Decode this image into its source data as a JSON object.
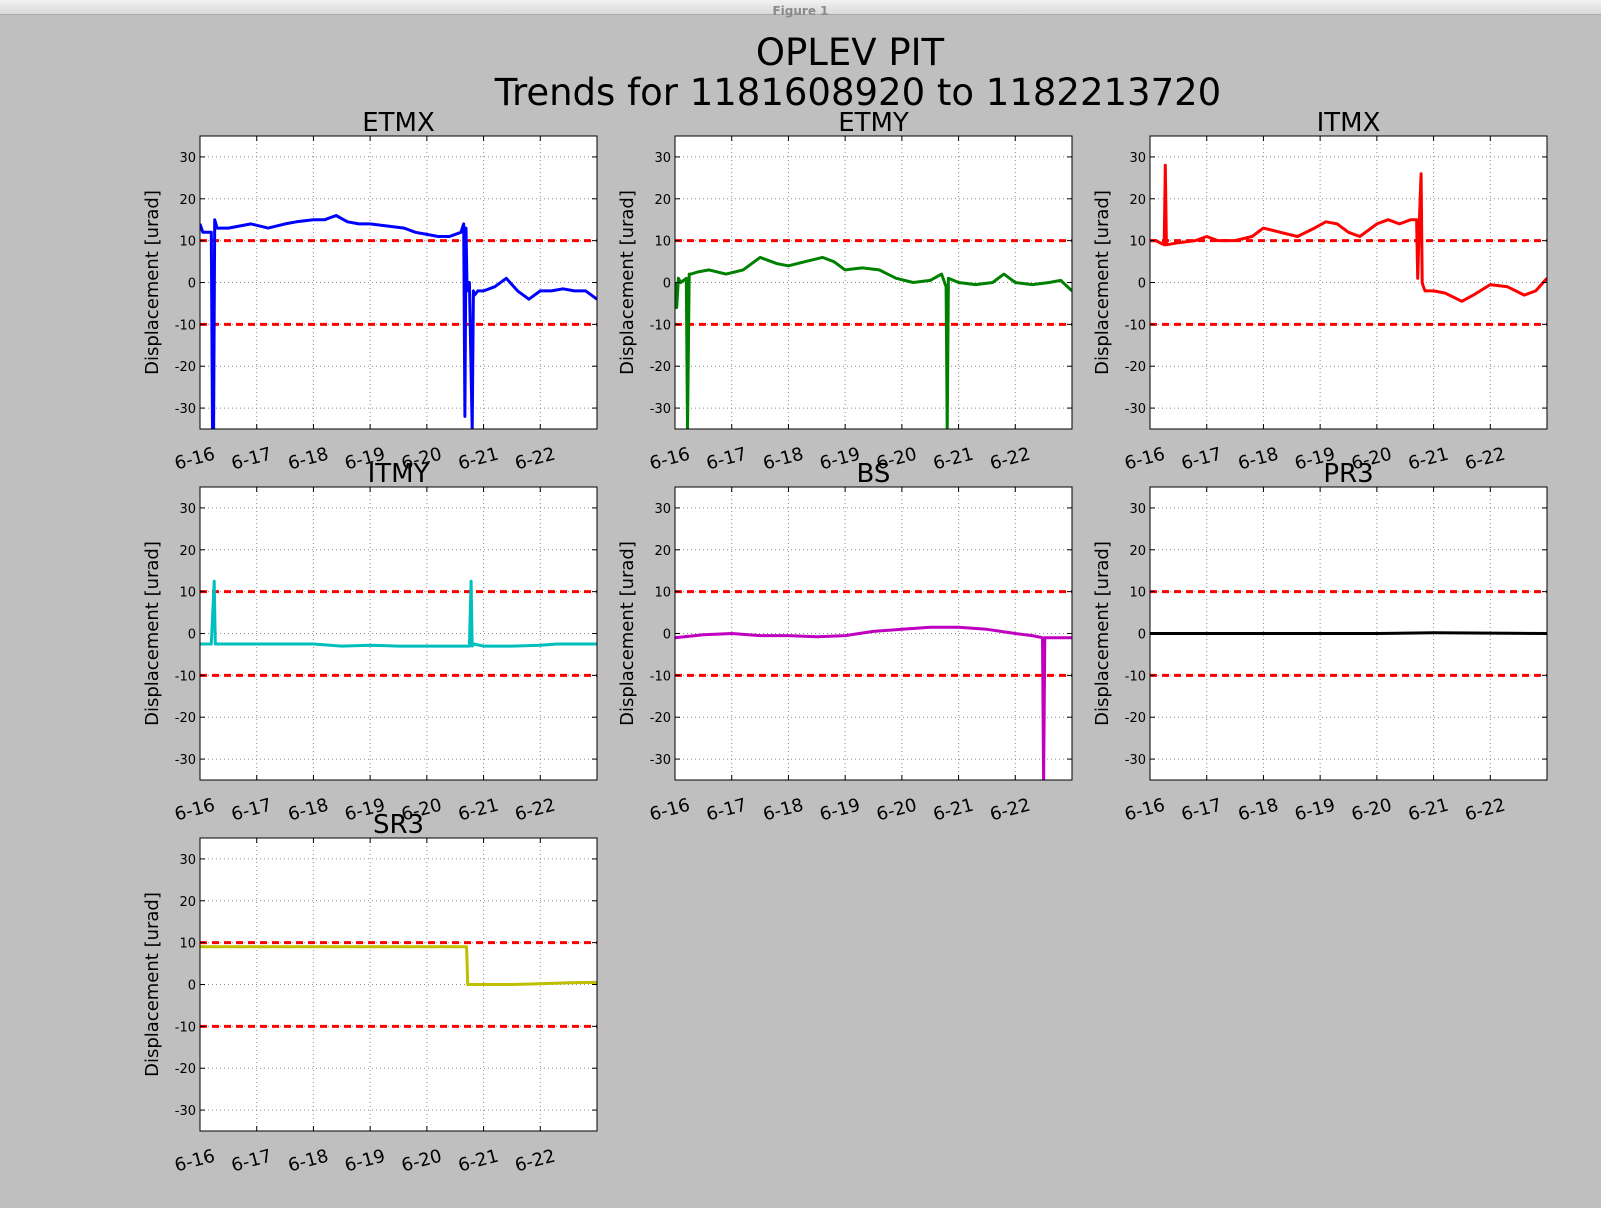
{
  "window": {
    "title": "Figure 1"
  },
  "figure": {
    "title_line1": "OPLEV PIT",
    "title_line2": "Trends for 1181608920 to 1182213720"
  },
  "colors": {
    "background": "#bfbfbf",
    "threshold": "#ff0000",
    "ETMX": "#0000ff",
    "ETMY": "#008000",
    "ITMX": "#ff0000",
    "ITMY": "#00bfbf",
    "BS": "#bf00bf",
    "PR3": "#000000",
    "SR3": "#bfbf00"
  },
  "chart_data": [
    {
      "type": "line",
      "title": "ETMX",
      "xlabel": "",
      "ylabel": "Displacement [urad]",
      "xlim": [
        0,
        7
      ],
      "ylim": [
        -35,
        35
      ],
      "xticks": [
        0,
        1,
        2,
        3,
        4,
        5,
        6
      ],
      "xticklabels": [
        "6-16",
        "6-17",
        "6-18",
        "6-19",
        "6-20",
        "6-21",
        "6-22"
      ],
      "yticks": [
        -30,
        -20,
        -10,
        0,
        10,
        20,
        30
      ],
      "grid": true,
      "thresholds": [
        10,
        -10
      ],
      "series": [
        {
          "color": "#0000ff",
          "x": [
            0,
            0.05,
            0.2,
            0.22,
            0.24,
            0.26,
            0.28,
            0.3,
            0.5,
            0.7,
            0.9,
            1.2,
            1.5,
            1.7,
            2.0,
            2.2,
            2.4,
            2.6,
            2.8,
            3.0,
            3.3,
            3.6,
            3.8,
            4.0,
            4.2,
            4.4,
            4.6,
            4.65,
            4.67,
            4.69,
            4.71,
            4.75,
            4.8,
            4.82,
            4.84,
            4.9,
            5.0,
            5.2,
            5.4,
            5.6,
            5.8,
            6.0,
            6.2,
            6.4,
            6.6,
            6.8,
            7.0
          ],
          "y": [
            14,
            12,
            12,
            -35,
            -35,
            15,
            14,
            13,
            13,
            13.5,
            14,
            13,
            14,
            14.5,
            15,
            15,
            16,
            14.5,
            14,
            14,
            13.5,
            13,
            12,
            11.5,
            11,
            11,
            12,
            14,
            -32,
            13,
            -2,
            0,
            -35,
            -2,
            -3,
            -2,
            -2,
            -1,
            1,
            -2,
            -4,
            -2,
            -2,
            -1.5,
            -2,
            -2,
            -4
          ]
        }
      ]
    },
    {
      "type": "line",
      "title": "ETMY",
      "xlabel": "",
      "ylabel": "Displacement [urad]",
      "xlim": [
        0,
        7
      ],
      "ylim": [
        -35,
        35
      ],
      "xticks": [
        0,
        1,
        2,
        3,
        4,
        5,
        6
      ],
      "xticklabels": [
        "6-16",
        "6-17",
        "6-18",
        "6-19",
        "6-20",
        "6-21",
        "6-22"
      ],
      "yticks": [
        -30,
        -20,
        -10,
        0,
        10,
        20,
        30
      ],
      "grid": true,
      "thresholds": [
        10,
        -10
      ],
      "series": [
        {
          "color": "#008000",
          "x": [
            0,
            0.03,
            0.06,
            0.1,
            0.2,
            0.22,
            0.25,
            0.28,
            0.4,
            0.6,
            0.9,
            1.2,
            1.5,
            1.8,
            2.0,
            2.3,
            2.6,
            2.8,
            3.0,
            3.3,
            3.6,
            3.9,
            4.2,
            4.5,
            4.7,
            4.78,
            4.8,
            4.82,
            5.0,
            5.3,
            5.6,
            5.8,
            6.0,
            6.3,
            6.6,
            6.8,
            7.0
          ],
          "y": [
            0,
            -6,
            1,
            0,
            1,
            -35,
            2,
            2,
            2.5,
            3,
            2,
            3,
            6,
            4.5,
            4,
            5,
            6,
            5,
            3,
            3.5,
            3,
            1,
            0,
            0.5,
            2,
            -1,
            -35,
            1,
            0,
            -0.5,
            0,
            2,
            0,
            -0.5,
            0,
            0.5,
            -2
          ]
        }
      ]
    },
    {
      "type": "line",
      "title": "ITMX",
      "xlabel": "",
      "ylabel": "Displacement [urad]",
      "xlim": [
        0,
        7
      ],
      "ylim": [
        -35,
        35
      ],
      "xticks": [
        0,
        1,
        2,
        3,
        4,
        5,
        6
      ],
      "xticklabels": [
        "6-16",
        "6-17",
        "6-18",
        "6-19",
        "6-20",
        "6-21",
        "6-22"
      ],
      "yticks": [
        -30,
        -20,
        -10,
        0,
        10,
        20,
        30
      ],
      "grid": true,
      "thresholds": [
        10,
        -10
      ],
      "series": [
        {
          "color": "#ff0000",
          "x": [
            0,
            0.1,
            0.25,
            0.27,
            0.29,
            0.5,
            0.8,
            1.0,
            1.2,
            1.5,
            1.8,
            2.0,
            2.3,
            2.6,
            2.9,
            3.1,
            3.3,
            3.5,
            3.7,
            4.0,
            4.2,
            4.4,
            4.6,
            4.7,
            4.72,
            4.75,
            4.78,
            4.8,
            4.82,
            4.85,
            5.0,
            5.2,
            5.5,
            5.7,
            6.0,
            6.3,
            6.6,
            6.8,
            7.0
          ],
          "y": [
            10,
            10,
            9,
            28,
            9,
            9.5,
            10,
            11,
            10,
            10,
            11,
            13,
            12,
            11,
            13,
            14.5,
            14,
            12,
            11,
            14,
            15,
            14,
            15,
            15,
            1,
            15,
            26,
            0,
            -1,
            -2,
            -2,
            -2.5,
            -4.5,
            -3,
            -0.5,
            -1,
            -3,
            -2,
            1
          ]
        }
      ]
    },
    {
      "type": "line",
      "title": "ITMY",
      "xlabel": "",
      "ylabel": "Displacement [urad]",
      "xlim": [
        0,
        7
      ],
      "ylim": [
        -35,
        35
      ],
      "xticks": [
        0,
        1,
        2,
        3,
        4,
        5,
        6
      ],
      "xticklabels": [
        "6-16",
        "6-17",
        "6-18",
        "6-19",
        "6-20",
        "6-21",
        "6-22"
      ],
      "yticks": [
        -30,
        -20,
        -10,
        0,
        10,
        20,
        30
      ],
      "grid": true,
      "thresholds": [
        10,
        -10
      ],
      "series": [
        {
          "color": "#00bfbf",
          "x": [
            0,
            0.2,
            0.25,
            0.27,
            0.3,
            0.6,
            1.0,
            1.5,
            2.0,
            2.5,
            3.0,
            3.5,
            4.0,
            4.3,
            4.6,
            4.75,
            4.78,
            4.8,
            4.83,
            5.0,
            5.5,
            6.0,
            6.3,
            6.5,
            7.0
          ],
          "y": [
            -2.5,
            -2.5,
            12.5,
            -2.5,
            -2.5,
            -2.5,
            -2.5,
            -2.5,
            -2.5,
            -3,
            -2.8,
            -3,
            -3,
            -3,
            -3,
            -3,
            12.5,
            -3,
            -2.5,
            -3,
            -3,
            -2.8,
            -2.5,
            -2.5,
            -2.5
          ]
        }
      ]
    },
    {
      "type": "line",
      "title": "BS",
      "xlabel": "",
      "ylabel": "Displacement [urad]",
      "xlim": [
        0,
        7
      ],
      "ylim": [
        -35,
        35
      ],
      "xticks": [
        0,
        1,
        2,
        3,
        4,
        5,
        6
      ],
      "xticklabels": [
        "6-16",
        "6-17",
        "6-18",
        "6-19",
        "6-20",
        "6-21",
        "6-22"
      ],
      "yticks": [
        -30,
        -20,
        -10,
        0,
        10,
        20,
        30
      ],
      "grid": true,
      "thresholds": [
        10,
        -10
      ],
      "series": [
        {
          "color": "#bf00bf",
          "x": [
            0,
            0.5,
            1.0,
            1.5,
            2.0,
            2.5,
            3.0,
            3.5,
            4.0,
            4.5,
            5.0,
            5.5,
            6.0,
            6.3,
            6.48,
            6.5,
            6.52,
            6.7,
            7.0
          ],
          "y": [
            -1,
            -0.3,
            0,
            -0.5,
            -0.5,
            -0.8,
            -0.5,
            0.5,
            1,
            1.5,
            1.5,
            1,
            0,
            -0.5,
            -1,
            -35,
            -1,
            -1,
            -1
          ]
        }
      ]
    },
    {
      "type": "line",
      "title": "PR3",
      "xlabel": "",
      "ylabel": "Displacement [urad]",
      "xlim": [
        0,
        7
      ],
      "ylim": [
        -35,
        35
      ],
      "xticks": [
        0,
        1,
        2,
        3,
        4,
        5,
        6
      ],
      "xticklabels": [
        "6-16",
        "6-17",
        "6-18",
        "6-19",
        "6-20",
        "6-21",
        "6-22"
      ],
      "yticks": [
        -30,
        -20,
        -10,
        0,
        10,
        20,
        30
      ],
      "grid": true,
      "thresholds": [
        10,
        -10
      ],
      "series": [
        {
          "color": "#000000",
          "x": [
            0,
            1,
            2,
            3,
            4,
            5,
            6,
            7
          ],
          "y": [
            0,
            0,
            0,
            0,
            0,
            0.2,
            0.1,
            0
          ]
        }
      ]
    },
    {
      "type": "line",
      "title": "SR3",
      "xlabel": "",
      "ylabel": "Displacement [urad]",
      "xlim": [
        0,
        7
      ],
      "ylim": [
        -35,
        35
      ],
      "xticks": [
        0,
        1,
        2,
        3,
        4,
        5,
        6
      ],
      "xticklabels": [
        "6-16",
        "6-17",
        "6-18",
        "6-19",
        "6-20",
        "6-21",
        "6-22"
      ],
      "yticks": [
        -30,
        -20,
        -10,
        0,
        10,
        20,
        30
      ],
      "grid": true,
      "thresholds": [
        10,
        -10
      ],
      "series": [
        {
          "color": "#bfbf00",
          "x": [
            0,
            1,
            2,
            3,
            4,
            4.7,
            4.72,
            5.0,
            5.5,
            6.0,
            6.5,
            7.0
          ],
          "y": [
            9,
            9,
            9,
            9,
            9,
            9,
            0,
            0,
            0,
            0.2,
            0.4,
            0.5
          ]
        }
      ]
    }
  ]
}
